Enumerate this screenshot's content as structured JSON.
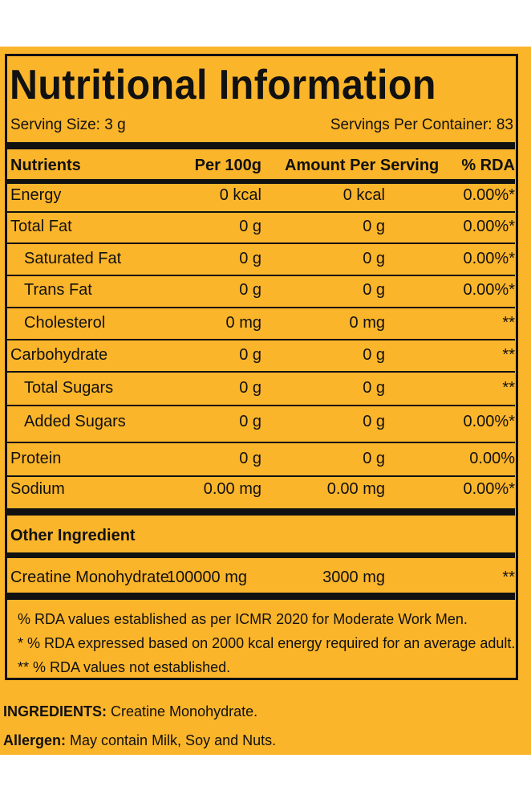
{
  "title": "Nutritional Information",
  "serving_size": "Serving Size: 3 g",
  "servings_per_container": "Servings Per Container: 83",
  "table": {
    "headers": [
      "Nutrients",
      "Per 100g",
      "Amount Per Serving",
      "% RDA"
    ],
    "rows": [
      {
        "name": "Energy",
        "per100": "0 kcal",
        "serving": "0 kcal",
        "rda": "0.00%*"
      },
      {
        "name": "Total Fat",
        "per100": "0 g",
        "serving": "0 g",
        "rda": "0.00%*"
      },
      {
        "name": "Saturated Fat",
        "per100": "0 g",
        "serving": "0 g",
        "rda": "0.00%*"
      },
      {
        "name": "Trans Fat",
        "per100": "0 g",
        "serving": "0 g",
        "rda": "0.00%*"
      },
      {
        "name": "Cholesterol",
        "per100": "0 mg",
        "serving": "0 mg",
        "rda": "**"
      },
      {
        "name": "Carbohydrate",
        "per100": "0 g",
        "serving": "0 g",
        "rda": "**"
      },
      {
        "name": "Total Sugars",
        "per100": "0 g",
        "serving": "0 g",
        "rda": "**"
      },
      {
        "name": "Added Sugars",
        "per100": "0 g",
        "serving": "0 g",
        "rda": "0.00%*"
      },
      {
        "name": "Protein",
        "per100": "0 g",
        "serving": "0 g",
        "rda": "0.00%"
      },
      {
        "name": "Sodium",
        "per100": "0.00 mg",
        "serving": "0.00 mg",
        "rda": "0.00%*"
      }
    ]
  },
  "other_ingredient": {
    "heading": "Other Ingredient",
    "name": "Creatine Monohydrate",
    "per100": "100000 mg",
    "serving": "3000 mg",
    "rda": "**"
  },
  "footnotes": [
    "% RDA values established as per ICMR 2020 for Moderate Work Men.",
    "* % RDA expressed based on 2000 kcal energy required for an average adult.",
    "** % RDA values not established."
  ],
  "ingredients": {
    "label": "INGREDIENTS:",
    "text": " Creatine Monohydrate."
  },
  "allergen": {
    "label": "Allergen:",
    "text": " May contain Milk, Soy and Nuts."
  }
}
